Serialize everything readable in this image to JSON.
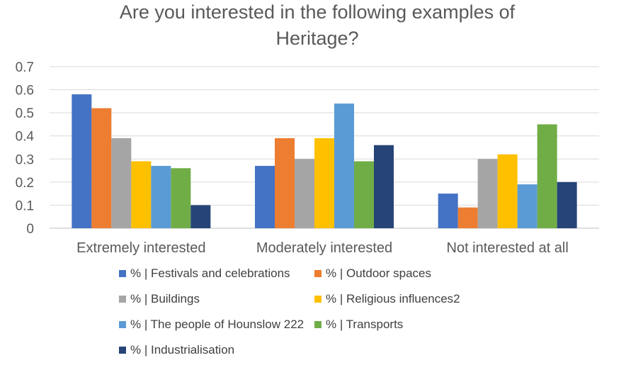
{
  "chart_data": {
    "type": "bar",
    "title": "Are you interested in the following examples of Heritage?",
    "title_lines": [
      "Are you interested in the following examples of",
      "Heritage?"
    ],
    "xlabel": "",
    "ylabel": "",
    "ylim": [
      0,
      0.7
    ],
    "yticks": [
      "0",
      "0.1",
      "0.2",
      "0.3",
      "0.4",
      "0.5",
      "0.6",
      "0.7"
    ],
    "grid": true,
    "legend_position": "bottom",
    "categories": [
      "Extremely interested",
      "Moderately interested",
      "Not interested at all"
    ],
    "series": [
      {
        "name": "% | Festivals and celebrations",
        "color": "#4472C4",
        "values": [
          0.58,
          0.27,
          0.15
        ]
      },
      {
        "name": "% | Outdoor spaces",
        "color": "#ED7D31",
        "values": [
          0.52,
          0.39,
          0.09
        ]
      },
      {
        "name": "% | Buildings",
        "color": "#A5A5A5",
        "values": [
          0.39,
          0.3,
          0.3
        ]
      },
      {
        "name": "% | Religious influences2",
        "color": "#FFC000",
        "values": [
          0.29,
          0.39,
          0.32
        ]
      },
      {
        "name": "% | The people of Hounslow 222",
        "color": "#5B9BD5",
        "values": [
          0.27,
          0.54,
          0.19
        ]
      },
      {
        "name": "% | Transports",
        "color": "#70AD47",
        "values": [
          0.26,
          0.29,
          0.45
        ]
      },
      {
        "name": "% | Industrialisation",
        "color": "#264478",
        "values": [
          0.1,
          0.36,
          0.2
        ]
      }
    ]
  }
}
